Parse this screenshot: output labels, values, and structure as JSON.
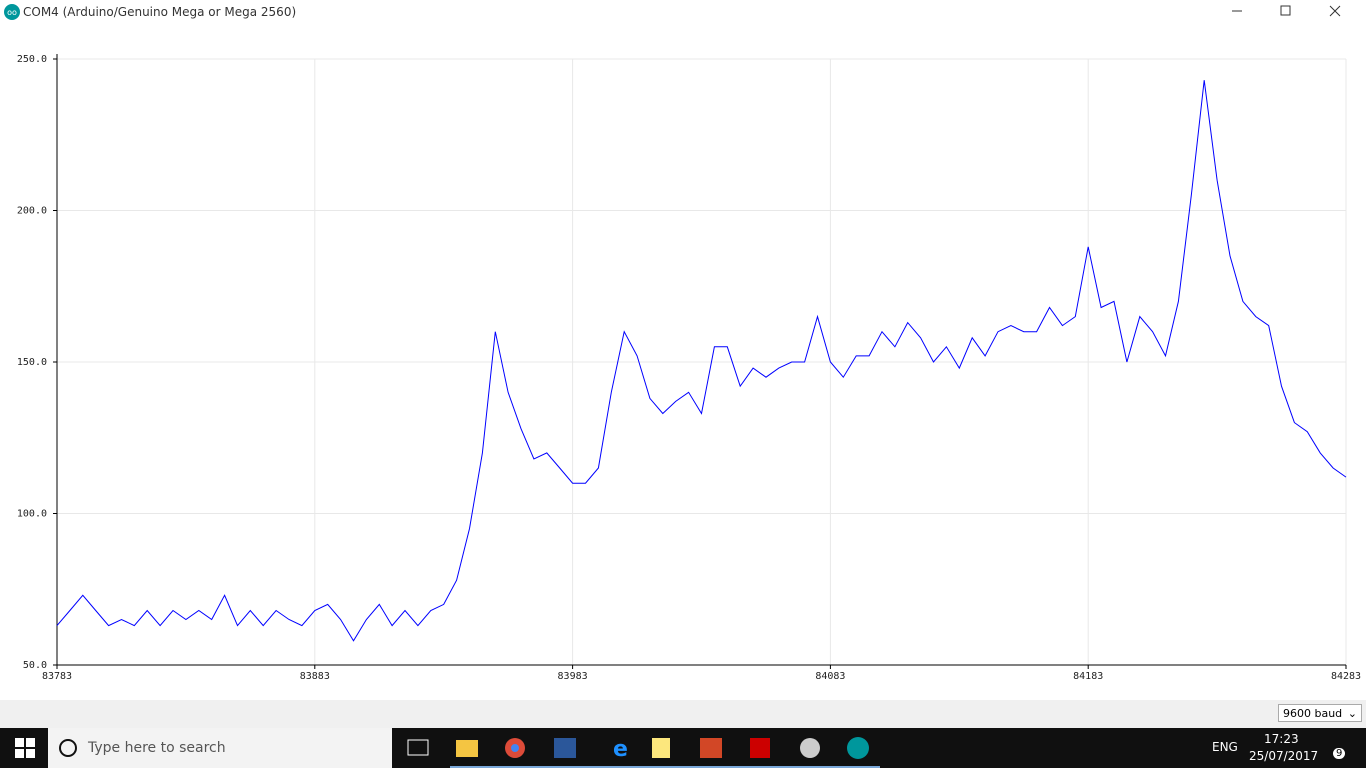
{
  "window": {
    "title": "COM4 (Arduino/Genuino Mega or Mega 2560)"
  },
  "chart_data": {
    "type": "line",
    "x": [
      83783,
      83788,
      83793,
      83798,
      83803,
      83808,
      83813,
      83818,
      83823,
      83828,
      83833,
      83838,
      83843,
      83848,
      83853,
      83858,
      83863,
      83868,
      83873,
      83878,
      83883,
      83888,
      83893,
      83898,
      83903,
      83908,
      83913,
      83918,
      83923,
      83928,
      83933,
      83938,
      83943,
      83948,
      83953,
      83958,
      83963,
      83968,
      83973,
      83978,
      83983,
      83988,
      83993,
      83998,
      84003,
      84008,
      84013,
      84018,
      84023,
      84028,
      84033,
      84038,
      84043,
      84048,
      84053,
      84058,
      84063,
      84068,
      84073,
      84078,
      84083,
      84088,
      84093,
      84098,
      84103,
      84108,
      84113,
      84118,
      84123,
      84128,
      84133,
      84138,
      84143,
      84148,
      84153,
      84158,
      84163,
      84168,
      84173,
      84178,
      84183,
      84188,
      84193,
      84198,
      84203,
      84208,
      84213,
      84218,
      84223,
      84228,
      84233,
      84238,
      84243,
      84248,
      84253,
      84258,
      84263,
      84268,
      84273,
      84278,
      84283
    ],
    "series": [
      {
        "color": "#0000ff",
        "values": [
          63,
          68,
          73,
          68,
          63,
          65,
          63,
          68,
          63,
          68,
          65,
          68,
          65,
          73,
          63,
          68,
          63,
          68,
          65,
          63,
          68,
          70,
          65,
          58,
          65,
          70,
          63,
          68,
          63,
          68,
          70,
          78,
          95,
          120,
          160,
          140,
          128,
          118,
          120,
          115,
          110,
          110,
          115,
          140,
          160,
          152,
          138,
          133,
          137,
          140,
          133,
          155,
          155,
          142,
          148,
          145,
          148,
          150,
          150,
          165,
          150,
          145,
          152,
          152,
          160,
          155,
          163,
          158,
          150,
          155,
          148,
          158,
          152,
          160,
          162,
          160,
          160,
          168,
          162,
          165,
          188,
          168,
          170,
          150,
          165,
          160,
          152,
          170,
          205,
          243,
          210,
          185,
          170,
          165,
          162,
          142,
          130,
          127,
          120,
          115,
          112
        ]
      }
    ],
    "xlim": [
      83783,
      84283
    ],
    "ylim": [
      50,
      250
    ],
    "xticks": [
      83783,
      83883,
      83983,
      84083,
      84183,
      84283
    ],
    "yticks": [
      {
        "value": 50,
        "label": "50.0"
      },
      {
        "value": 100,
        "label": "100.0"
      },
      {
        "value": 150,
        "label": "150.0"
      },
      {
        "value": 200,
        "label": "200.0"
      },
      {
        "value": 250,
        "label": "250.0"
      }
    ],
    "grid": true
  },
  "baud": "9600 baud",
  "taskbar": {
    "search": "Type here to search",
    "language": "ENG",
    "time": "17:23",
    "date": "25/07/2017",
    "notifications": "9"
  }
}
